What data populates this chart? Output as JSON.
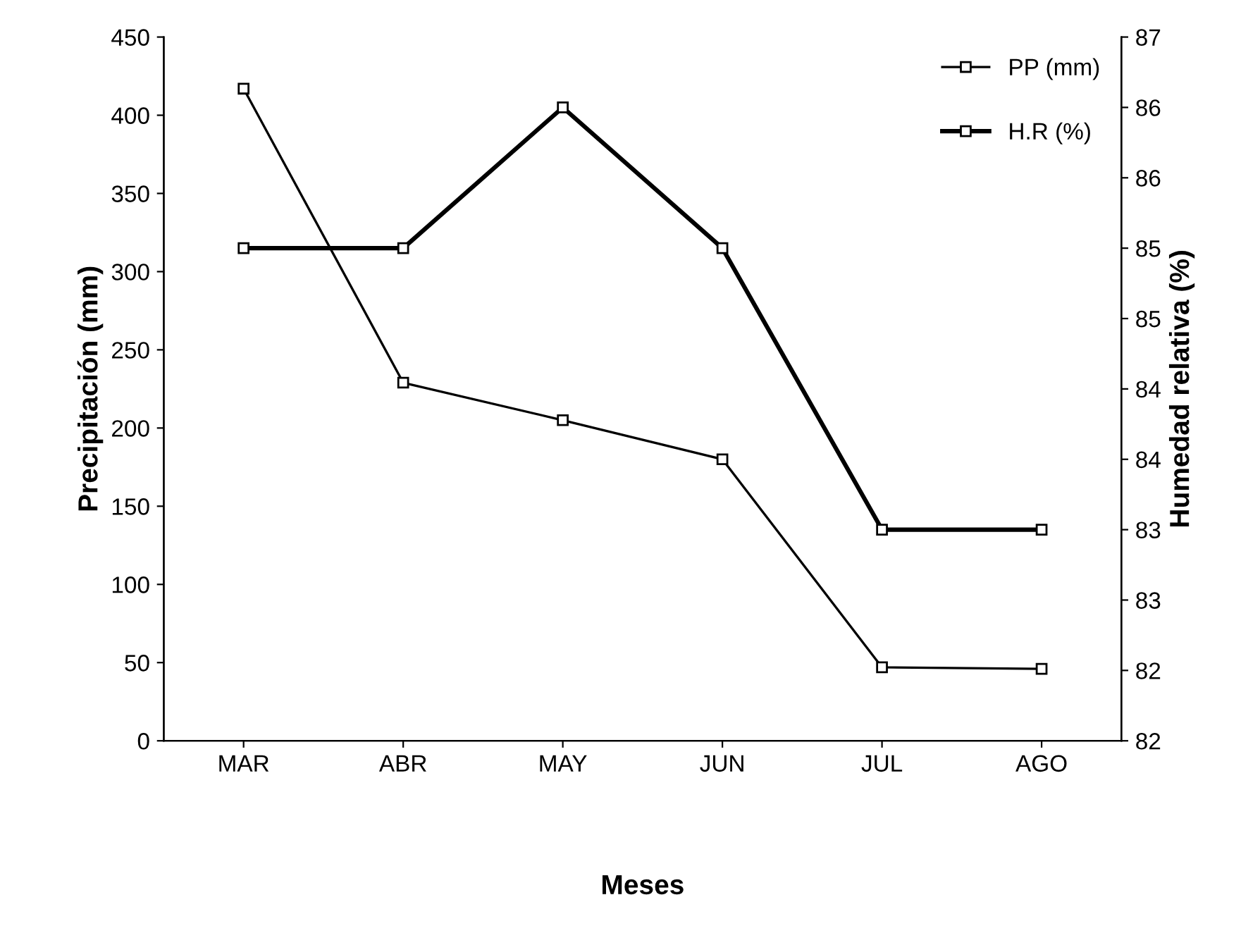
{
  "chart_data": {
    "type": "line",
    "xlabel": "Meses",
    "ylabel": "Precipitación (mm)",
    "y2label": "Humedad relativa (%)",
    "categories": [
      "MAR",
      "ABR",
      "MAY",
      "JUN",
      "JUL",
      "AGO"
    ],
    "series": [
      {
        "name": "PP (mm)",
        "color": "#000000",
        "values": [
          417,
          229,
          205,
          180,
          47,
          46
        ]
      },
      {
        "name": "H.R (%)",
        "color": "#000000",
        "values": [
          85.5,
          85.5,
          86.5,
          85.5,
          83.5,
          83.5
        ],
        "axis": "y2"
      }
    ],
    "ylim": [
      0,
      450
    ],
    "yticks": [
      0,
      50,
      100,
      150,
      200,
      250,
      300,
      350,
      400,
      450
    ],
    "y2lim": [
      82,
      87
    ],
    "y2ticks": [
      82,
      {
        "value": 82.5,
        "label": "82"
      },
      83,
      {
        "value": 83.5,
        "label": "83"
      },
      84,
      {
        "value": 84.5,
        "label": "84"
      },
      85,
      {
        "value": 85.5,
        "label": "85"
      },
      86,
      {
        "value": 86.5,
        "label": "86"
      },
      87
    ],
    "marker": "square",
    "line_style": "solid",
    "legend": "top right",
    "grid": false
  }
}
